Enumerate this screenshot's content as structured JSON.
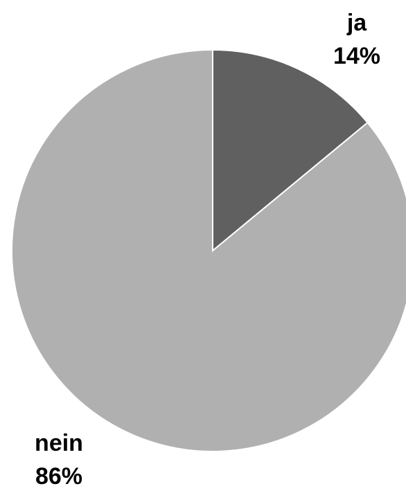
{
  "chart_data": {
    "type": "pie",
    "categories": [
      "ja",
      "nein"
    ],
    "values": [
      14,
      86
    ],
    "value_labels": [
      "14%",
      "86%"
    ],
    "colors": [
      "#606060",
      "#b0b0b0"
    ]
  }
}
